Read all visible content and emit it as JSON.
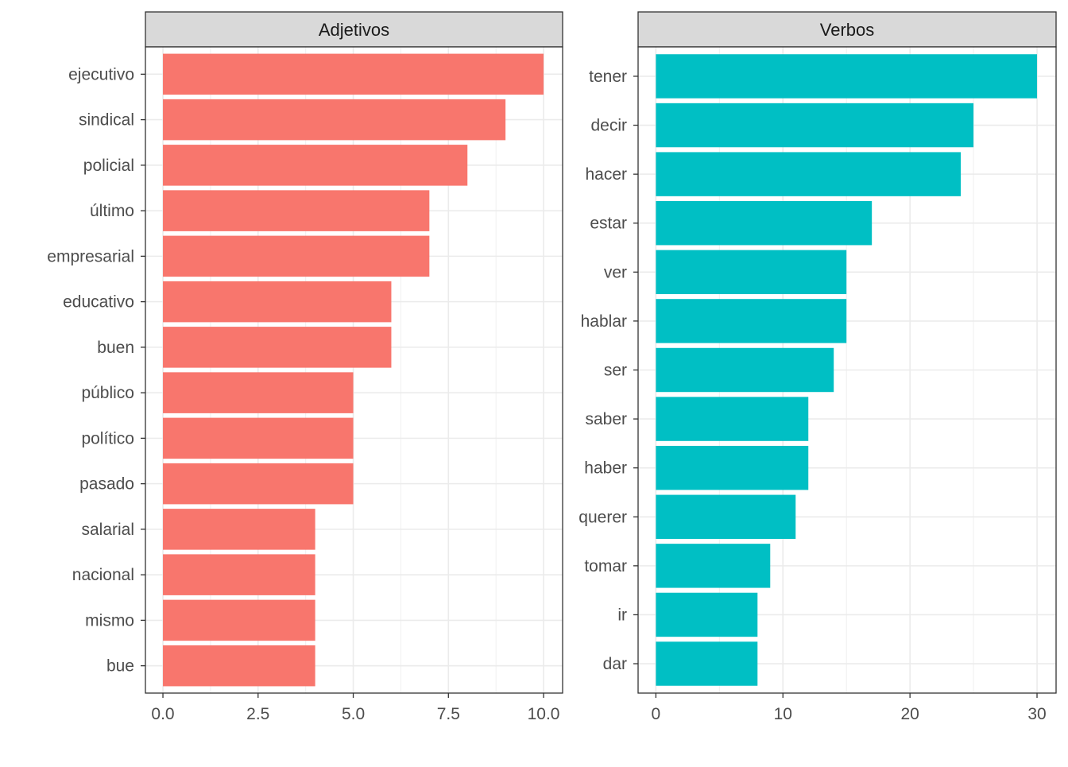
{
  "chart_data": [
    {
      "type": "bar",
      "orientation": "horizontal",
      "title": "Adjetivos",
      "color": "#F8766D",
      "categories": [
        "ejecutivo",
        "sindical",
        "policial",
        "último",
        "empresarial",
        "educativo",
        "buen",
        "público",
        "político",
        "pasado",
        "salarial",
        "nacional",
        "mismo",
        "bue"
      ],
      "values": [
        10,
        9,
        8,
        7,
        7,
        6,
        6,
        5,
        5,
        5,
        4,
        4,
        4,
        4
      ],
      "xlim": [
        -0.46,
        10.5
      ],
      "ticks": [
        0,
        2.5,
        5,
        7.5,
        10
      ],
      "tick_labels": [
        "0.0",
        "2.5",
        "5.0",
        "7.5",
        "10.0"
      ],
      "grid": true
    },
    {
      "type": "bar",
      "orientation": "horizontal",
      "title": "Verbos",
      "color": "#00BFC4",
      "categories": [
        "tener",
        "decir",
        "hacer",
        "estar",
        "ver",
        "hablar",
        "ser",
        "saber",
        "haber",
        "querer",
        "tomar",
        "ir",
        "dar"
      ],
      "values": [
        30,
        25,
        24,
        17,
        15,
        15,
        14,
        12,
        12,
        11,
        9,
        8,
        8
      ],
      "xlim": [
        -1.4,
        31.5
      ],
      "ticks": [
        0,
        10,
        20,
        30
      ],
      "tick_labels": [
        "0",
        "10",
        "20",
        "30"
      ],
      "grid": true
    }
  ]
}
